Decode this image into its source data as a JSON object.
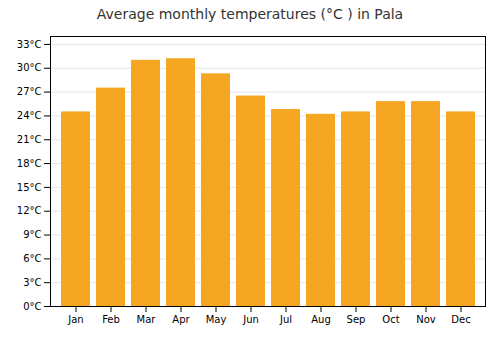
{
  "chart_data": {
    "type": "bar",
    "title": "Average monthly temperatures (°C ) in Pala",
    "categories": [
      "Jan",
      "Feb",
      "Mar",
      "Apr",
      "May",
      "Jun",
      "Jul",
      "Aug",
      "Sep",
      "Oct",
      "Nov",
      "Dec"
    ],
    "values": [
      24.5,
      27.5,
      31.0,
      31.2,
      29.3,
      26.5,
      24.8,
      24.2,
      24.5,
      25.8,
      25.8,
      24.5
    ],
    "color": "#F5A623",
    "ylim": [
      0,
      34
    ],
    "yticks": [
      {
        "value": 0,
        "label": "0°C"
      },
      {
        "value": 3,
        "label": "3°C"
      },
      {
        "value": 6,
        "label": "6°C"
      },
      {
        "value": 9,
        "label": "9°C"
      },
      {
        "value": 12,
        "label": "12°C"
      },
      {
        "value": 15,
        "label": "15°C"
      },
      {
        "value": 18,
        "label": "18°C"
      },
      {
        "value": 21,
        "label": "21°C"
      },
      {
        "value": 24,
        "label": "24°C"
      },
      {
        "value": 27,
        "label": "27°C"
      },
      {
        "value": 30,
        "label": "30°C"
      },
      {
        "value": 33,
        "label": "33°C"
      }
    ],
    "grid": true
  }
}
